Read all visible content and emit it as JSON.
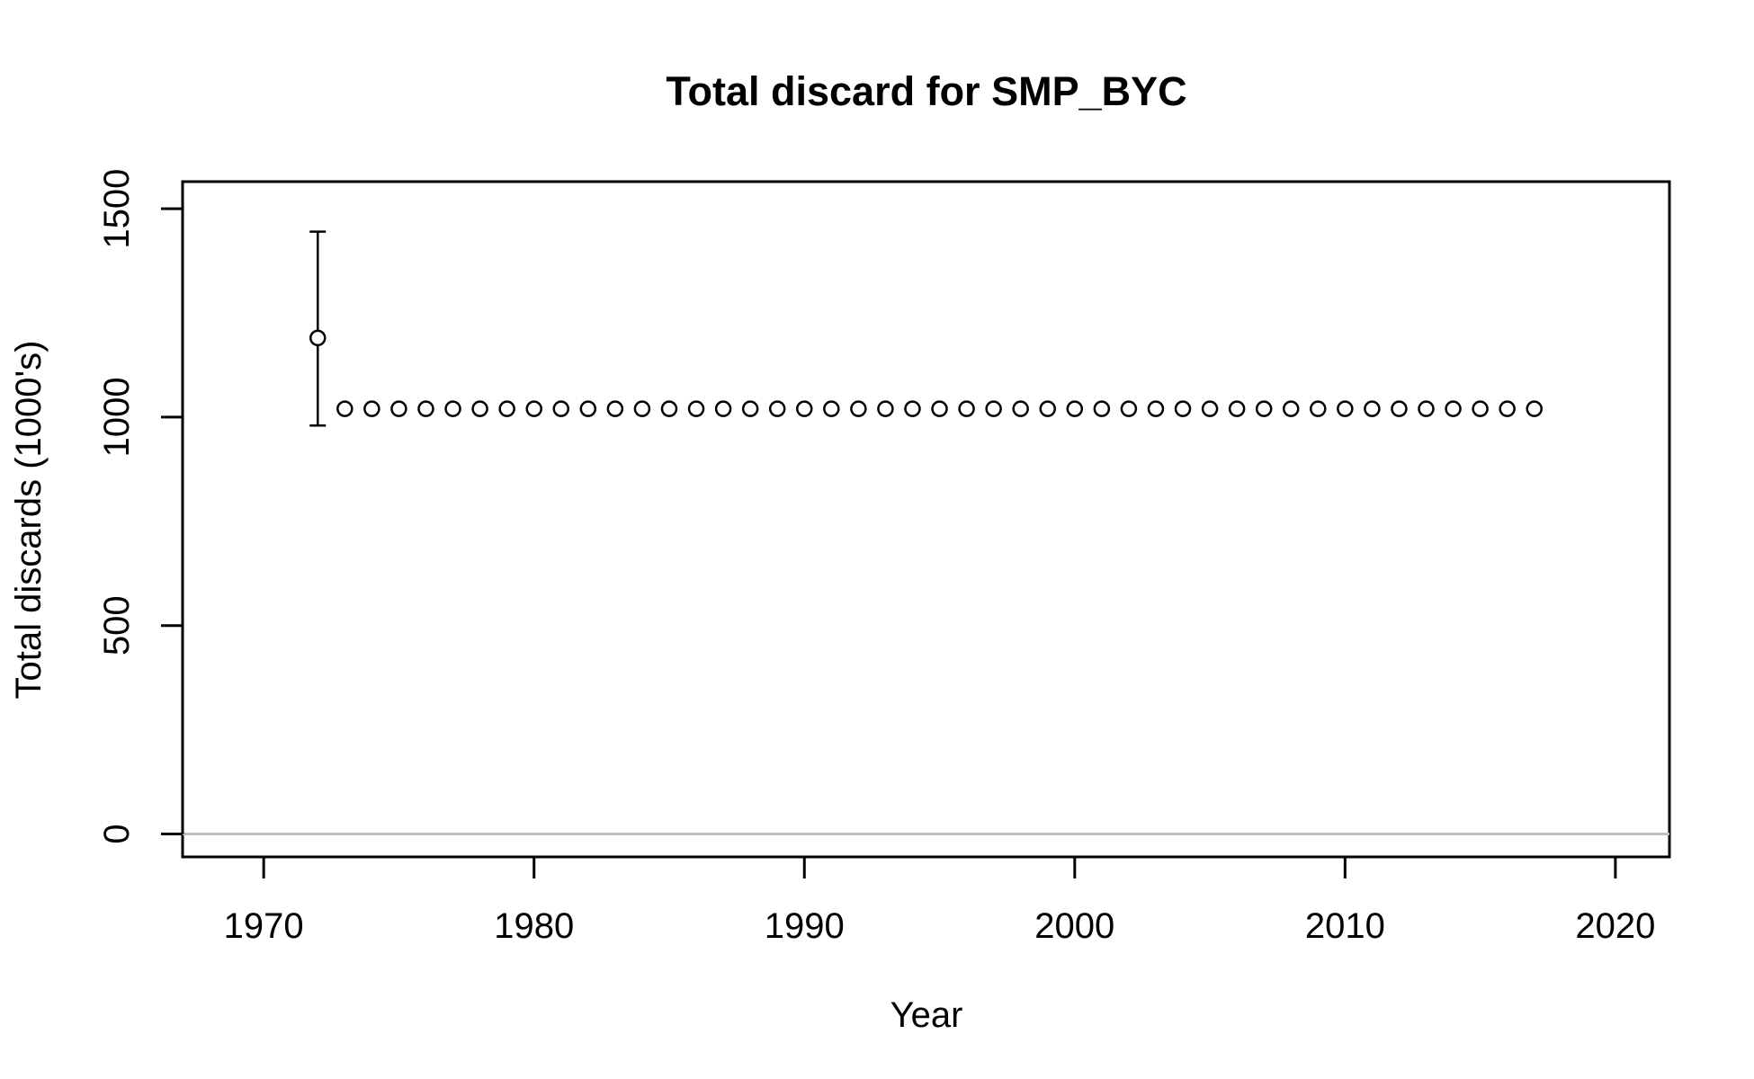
{
  "chart_data": {
    "type": "scatter",
    "title": "Total discard for SMP_BYC",
    "xlabel": "Year",
    "ylabel": "Total discards (1000's)",
    "xlim": [
      1967,
      2022
    ],
    "ylim": [
      -55,
      1565
    ],
    "x_ticks": [
      1970,
      1980,
      1990,
      2000,
      2010,
      2020
    ],
    "y_ticks": [
      0,
      500,
      1000,
      1500
    ],
    "reference_line": {
      "y": 0,
      "color": "#bebebe"
    },
    "grid": false,
    "legend": "none",
    "marker": "open-circle",
    "point_color": "#000000",
    "x": [
      1972,
      1973,
      1974,
      1975,
      1976,
      1977,
      1978,
      1979,
      1980,
      1981,
      1982,
      1983,
      1984,
      1985,
      1986,
      1987,
      1988,
      1989,
      1990,
      1991,
      1992,
      1993,
      1994,
      1995,
      1996,
      1997,
      1998,
      1999,
      2000,
      2001,
      2002,
      2003,
      2004,
      2005,
      2006,
      2007,
      2008,
      2009,
      2010,
      2011,
      2012,
      2013,
      2014,
      2015,
      2016,
      2017
    ],
    "y": [
      1190,
      1020,
      1020,
      1020,
      1020,
      1020,
      1020,
      1020,
      1020,
      1020,
      1020,
      1020,
      1020,
      1020,
      1020,
      1020,
      1020,
      1020,
      1020,
      1020,
      1020,
      1020,
      1020,
      1020,
      1020,
      1020,
      1020,
      1020,
      1020,
      1020,
      1020,
      1020,
      1020,
      1020,
      1020,
      1020,
      1020,
      1020,
      1020,
      1020,
      1020,
      1020,
      1020,
      1020,
      1020,
      1020
    ],
    "error_bars": [
      {
        "x": 1972,
        "low": 980,
        "high": 1445
      }
    ]
  }
}
